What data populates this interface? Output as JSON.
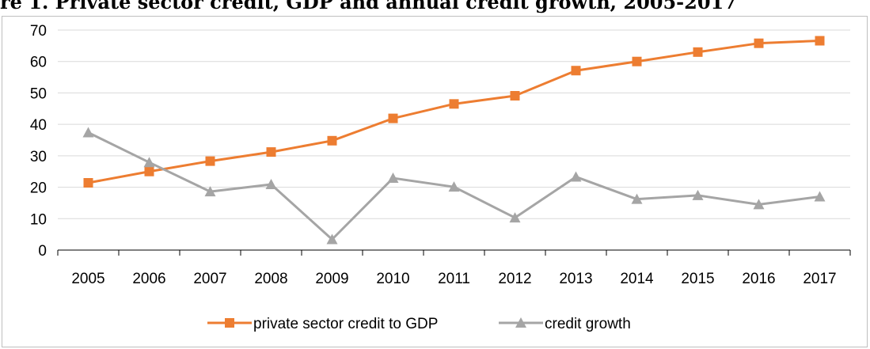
{
  "header": {
    "title_fragment": "re 1. Private sector credit, GDP and annual credit growth, 2005-2017"
  },
  "chart_data": {
    "type": "line",
    "title": "",
    "xlabel": "",
    "ylabel": "",
    "categories": [
      "2005",
      "2006",
      "2007",
      "2008",
      "2009",
      "2010",
      "2011",
      "2012",
      "2013",
      "2014",
      "2015",
      "2016",
      "2017"
    ],
    "ylim": [
      0,
      70
    ],
    "yticks": [
      0,
      10,
      20,
      30,
      40,
      50,
      60,
      70
    ],
    "grid": true,
    "legend_position": "bottom",
    "series": [
      {
        "name": "private sector credit to GDP",
        "color": "#ED7D31",
        "marker": "square",
        "values": [
          21.4,
          25.0,
          28.3,
          31.2,
          34.8,
          41.9,
          46.5,
          49.1,
          57.1,
          60.0,
          63.0,
          65.8,
          66.6
        ]
      },
      {
        "name": "credit growth",
        "color": "#A5A5A5",
        "marker": "triangle",
        "values": [
          37.4,
          27.9,
          18.6,
          20.9,
          3.4,
          22.9,
          20.1,
          10.3,
          23.3,
          16.2,
          17.4,
          14.5,
          17.0
        ]
      }
    ]
  }
}
